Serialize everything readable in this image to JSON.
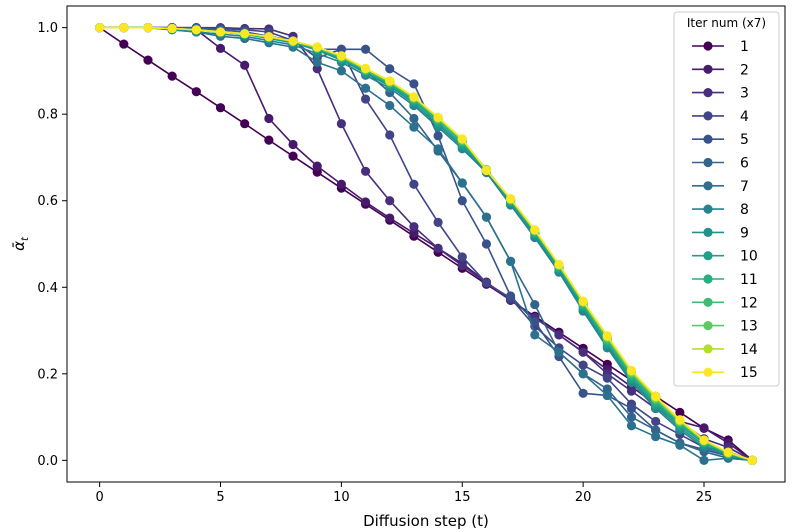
{
  "chart_data": {
    "type": "line",
    "title": "",
    "xlabel": "Diffusion step (t)",
    "ylabel": "ᾱ",
    "ylabel_subscript": "t",
    "xlim": [
      -1.35,
      28.35
    ],
    "ylim": [
      -0.05,
      1.05
    ],
    "xticks": [
      0,
      5,
      10,
      15,
      20,
      25
    ],
    "yticks": [
      0.0,
      0.2,
      0.4,
      0.6,
      0.8,
      1.0
    ],
    "ytick_labels": [
      "0.0",
      "0.2",
      "0.4",
      "0.6",
      "0.8",
      "1.0"
    ],
    "legend_title": "Iter num (x7)",
    "legend_location": "top-right",
    "x": [
      0,
      1,
      2,
      3,
      4,
      5,
      6,
      7,
      8,
      9,
      10,
      11,
      12,
      13,
      14,
      15,
      16,
      17,
      18,
      19,
      20,
      21,
      22,
      23,
      24,
      25,
      26,
      27
    ],
    "series": [
      {
        "name": "1",
        "color": "#440154",
        "values": [
          1.0,
          0.962,
          0.925,
          0.888,
          0.852,
          0.815,
          0.778,
          0.74,
          0.703,
          0.666,
          0.629,
          0.592,
          0.555,
          0.518,
          0.481,
          0.444,
          0.407,
          0.37,
          0.333,
          0.296,
          0.259,
          0.222,
          0.185,
          0.148,
          0.111,
          0.074,
          0.047,
          0.0
        ]
      },
      {
        "name": "2",
        "color": "#481a6c",
        "values": [
          1.0,
          1.0,
          1.0,
          1.0,
          0.995,
          0.952,
          0.913,
          0.79,
          0.73,
          0.68,
          0.638,
          0.597,
          0.56,
          0.525,
          0.49,
          0.455,
          0.412,
          0.37,
          0.33,
          0.29,
          0.25,
          0.21,
          0.17,
          0.13,
          0.09,
          0.075,
          0.04,
          0.0
        ]
      },
      {
        "name": "3",
        "color": "#472f7d",
        "values": [
          1.0,
          1.0,
          1.0,
          1.0,
          1.0,
          1.0,
          0.998,
          0.997,
          0.98,
          0.905,
          0.778,
          0.668,
          0.6,
          0.54,
          0.49,
          0.45,
          0.41,
          0.37,
          0.33,
          0.29,
          0.25,
          0.2,
          0.16,
          0.12,
          0.09,
          0.05,
          0.03,
          0.0
        ]
      },
      {
        "name": "4",
        "color": "#414487",
        "values": [
          1.0,
          1.0,
          1.0,
          1.0,
          1.0,
          0.998,
          0.995,
          0.99,
          0.97,
          0.93,
          0.95,
          0.835,
          0.752,
          0.638,
          0.55,
          0.47,
          0.41,
          0.375,
          0.31,
          0.26,
          0.22,
          0.19,
          0.13,
          0.09,
          0.06,
          0.03,
          0.02,
          0.0
        ]
      },
      {
        "name": "5",
        "color": "#3a528b",
        "values": [
          1.0,
          1.0,
          1.0,
          1.0,
          0.998,
          0.995,
          0.99,
          0.98,
          0.97,
          0.95,
          0.95,
          0.95,
          0.905,
          0.87,
          0.75,
          0.6,
          0.5,
          0.38,
          0.32,
          0.24,
          0.155,
          0.15,
          0.12,
          0.07,
          0.04,
          0.025,
          0.01,
          0.0
        ]
      },
      {
        "name": "6",
        "color": "#32648e",
        "values": [
          1.0,
          1.0,
          1.0,
          1.0,
          0.998,
          0.995,
          0.99,
          0.98,
          0.97,
          0.95,
          0.93,
          0.9,
          0.85,
          0.79,
          0.715,
          0.641,
          0.562,
          0.46,
          0.36,
          0.25,
          0.2,
          0.165,
          0.1,
          0.07,
          0.04,
          0.02,
          0.005,
          0.0
        ]
      },
      {
        "name": "7",
        "color": "#2c728e",
        "values": [
          1.0,
          1.0,
          1.0,
          0.995,
          0.99,
          0.98,
          0.975,
          0.965,
          0.955,
          0.92,
          0.9,
          0.86,
          0.82,
          0.77,
          0.72,
          0.641,
          0.562,
          0.46,
          0.29,
          0.25,
          0.2,
          0.15,
          0.08,
          0.055,
          0.035,
          0.0,
          0.005,
          0.0
        ]
      },
      {
        "name": "8",
        "color": "#26838f",
        "values": [
          1.0,
          1.0,
          1.0,
          0.995,
          0.99,
          0.985,
          0.98,
          0.97,
          0.96,
          0.94,
          0.92,
          0.89,
          0.86,
          0.82,
          0.77,
          0.72,
          0.665,
          0.59,
          0.515,
          0.435,
          0.345,
          0.26,
          0.18,
          0.12,
          0.07,
          0.03,
          0.01,
          0.0
        ]
      },
      {
        "name": "9",
        "color": "#21918c",
        "values": [
          1.0,
          1.0,
          1.0,
          0.998,
          0.995,
          0.99,
          0.985,
          0.975,
          0.965,
          0.948,
          0.925,
          0.895,
          0.865,
          0.825,
          0.775,
          0.725,
          0.668,
          0.595,
          0.52,
          0.44,
          0.35,
          0.265,
          0.185,
          0.125,
          0.075,
          0.035,
          0.012,
          0.0
        ]
      },
      {
        "name": "10",
        "color": "#1fa088",
        "values": [
          1.0,
          1.0,
          1.0,
          0.998,
          0.995,
          0.99,
          0.985,
          0.976,
          0.966,
          0.95,
          0.928,
          0.898,
          0.868,
          0.83,
          0.78,
          0.73,
          0.67,
          0.598,
          0.524,
          0.444,
          0.356,
          0.27,
          0.19,
          0.13,
          0.08,
          0.04,
          0.014,
          0.0
        ]
      },
      {
        "name": "11",
        "color": "#28ae80",
        "values": [
          1.0,
          1.0,
          1.0,
          0.998,
          0.995,
          0.99,
          0.985,
          0.977,
          0.967,
          0.952,
          0.93,
          0.9,
          0.871,
          0.833,
          0.785,
          0.735,
          0.671,
          0.6,
          0.527,
          0.447,
          0.36,
          0.275,
          0.195,
          0.135,
          0.085,
          0.042,
          0.015,
          0.0
        ]
      },
      {
        "name": "12",
        "color": "#3fbc73",
        "values": [
          1.0,
          1.0,
          1.0,
          0.998,
          0.995,
          0.99,
          0.986,
          0.978,
          0.968,
          0.953,
          0.932,
          0.902,
          0.873,
          0.836,
          0.788,
          0.738,
          0.672,
          0.602,
          0.53,
          0.45,
          0.363,
          0.28,
          0.2,
          0.14,
          0.088,
          0.044,
          0.016,
          0.0
        ]
      },
      {
        "name": "13",
        "color": "#5ec962",
        "values": [
          1.0,
          1.0,
          1.0,
          0.998,
          0.995,
          0.99,
          0.986,
          0.979,
          0.969,
          0.954,
          0.933,
          0.904,
          0.875,
          0.838,
          0.79,
          0.74,
          0.672,
          0.603,
          0.531,
          0.451,
          0.365,
          0.283,
          0.203,
          0.143,
          0.09,
          0.045,
          0.017,
          0.0
        ]
      },
      {
        "name": "14",
        "color": "#b5de2b",
        "values": [
          1.0,
          1.0,
          1.0,
          0.998,
          0.995,
          0.99,
          0.986,
          0.979,
          0.969,
          0.955,
          0.934,
          0.905,
          0.876,
          0.839,
          0.792,
          0.742,
          0.671,
          0.604,
          0.532,
          0.452,
          0.367,
          0.286,
          0.206,
          0.146,
          0.092,
          0.046,
          0.018,
          0.0
        ]
      },
      {
        "name": "15",
        "color": "#fde725",
        "values": [
          1.0,
          1.0,
          1.0,
          0.998,
          0.995,
          0.99,
          0.986,
          0.979,
          0.969,
          0.955,
          0.935,
          0.906,
          0.877,
          0.84,
          0.793,
          0.743,
          0.67,
          0.605,
          0.533,
          0.453,
          0.368,
          0.288,
          0.208,
          0.148,
          0.094,
          0.047,
          0.019,
          0.0
        ]
      }
    ]
  }
}
